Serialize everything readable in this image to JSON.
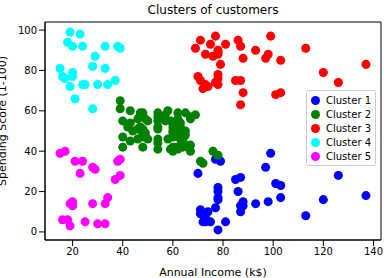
{
  "chart_data": {
    "type": "scatter",
    "title": "Clusters of customers",
    "x_label": "Annual Income (k$)",
    "y_label": "Spending Score (1-100)",
    "xlim": [
      9,
      143
    ],
    "xticks": [
      20,
      40,
      60,
      80,
      100,
      120,
      140
    ],
    "ylim": [
      -4,
      104
    ],
    "yticks": [
      0,
      20,
      40,
      60,
      80,
      100
    ],
    "grid": false,
    "legend": "right",
    "marker": "circle",
    "series": [
      {
        "name": "Cluster 1",
        "color": "#0000ff",
        "x": [
          70,
          71,
          71,
          72,
          73,
          73,
          74,
          75,
          77,
          77,
          78,
          78,
          78,
          78,
          78,
          79,
          81,
          85,
          86,
          87,
          87,
          87,
          88,
          88,
          93,
          97,
          98,
          99,
          101,
          103,
          103,
          113,
          120,
          126,
          137
        ],
        "values": [
          29,
          11,
          9,
          5,
          5,
          7,
          10,
          5,
          12,
          36,
          22,
          17,
          20,
          16,
          1,
          35,
          5,
          26,
          20,
          27,
          13,
          10,
          13,
          15,
          14,
          32,
          15,
          39,
          24,
          17,
          23,
          8,
          16,
          28,
          18
        ]
      },
      {
        "name": "Cluster 2",
        "color": "#008000",
        "x": [
          39,
          39,
          40,
          40,
          40,
          42,
          43,
          43,
          43,
          44,
          46,
          46,
          46,
          47,
          47,
          48,
          48,
          48,
          48,
          48,
          48,
          49,
          49,
          50,
          50,
          54,
          54,
          54,
          54,
          54,
          54,
          54,
          54,
          57,
          57,
          58,
          58,
          59,
          59,
          60,
          60,
          60,
          60,
          60,
          60,
          61,
          61,
          62,
          62,
          62,
          62,
          62,
          62,
          63,
          63,
          63,
          63,
          63,
          63,
          64,
          64,
          65,
          65,
          65,
          65,
          67,
          67,
          67,
          67,
          69,
          71,
          72,
          76,
          78
        ],
        "values": [
          61,
          65,
          55,
          47,
          42,
          52,
          60,
          54,
          45,
          50,
          51,
          46,
          56,
          52,
          59,
          51,
          59,
          50,
          48,
          47,
          42,
          49,
          56,
          46,
          55,
          52,
          59,
          51,
          55,
          41,
          44,
          57,
          46,
          58,
          55,
          60,
          46,
          55,
          41,
          49,
          40,
          42,
          52,
          47,
          50,
          42,
          49,
          41,
          48,
          59,
          55,
          56,
          42,
          50,
          46,
          43,
          48,
          52,
          54,
          42,
          46,
          48,
          50,
          43,
          59,
          43,
          57,
          56,
          40,
          58,
          35,
          34,
          40,
          38
        ]
      },
      {
        "name": "Cluster 3",
        "color": "#ff0000",
        "x": [
          69,
          70,
          71,
          71,
          72,
          73,
          73,
          74,
          75,
          76,
          77,
          77,
          78,
          78,
          78,
          78,
          78,
          78,
          79,
          81,
          85,
          86,
          87,
          87,
          87,
          88,
          88,
          93,
          97,
          98,
          99,
          101,
          103,
          103,
          113,
          120,
          126,
          137
        ],
        "values": [
          91,
          77,
          95,
          75,
          71,
          88,
          73,
          72,
          93,
          87,
          97,
          74,
          90,
          88,
          76,
          89,
          78,
          73,
          83,
          93,
          75,
          95,
          63,
          75,
          92,
          86,
          69,
          90,
          86,
          88,
          97,
          68,
          85,
          69,
          91,
          79,
          74,
          83
        ]
      },
      {
        "name": "Cluster 4",
        "color": "#00ffff",
        "x": [
          15,
          16,
          17,
          18,
          19,
          19,
          20,
          20,
          20,
          21,
          23,
          24,
          24,
          25,
          28,
          28,
          29,
          30,
          33,
          33,
          34,
          37,
          38,
          39
        ],
        "values": [
          81,
          77,
          76,
          94,
          72,
          99,
          77,
          79,
          92,
          66,
          98,
          73,
          92,
          73,
          82,
          61,
          87,
          73,
          92,
          81,
          73,
          75,
          92,
          91
        ]
      },
      {
        "name": "Cluster 5",
        "color": "#ff00ff",
        "x": [
          15,
          16,
          17,
          18,
          19,
          19,
          20,
          20,
          21,
          23,
          24,
          25,
          28,
          28,
          29,
          30,
          33,
          33,
          34,
          37,
          38,
          39,
          39
        ],
        "values": [
          39,
          6,
          40,
          6,
          3,
          14,
          15,
          13,
          35,
          29,
          35,
          5,
          14,
          32,
          31,
          4,
          4,
          14,
          17,
          26,
          35,
          36,
          28
        ]
      }
    ]
  }
}
